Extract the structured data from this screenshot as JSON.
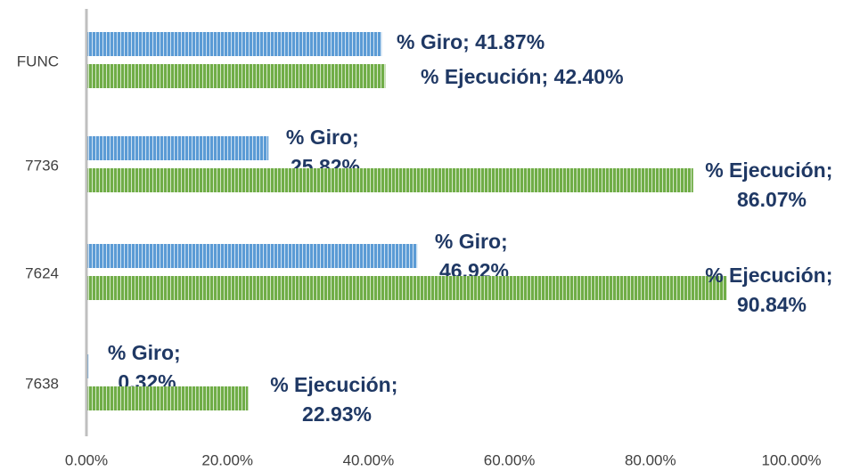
{
  "chart_data": {
    "type": "barh",
    "categories": [
      "FUNC",
      "7736",
      "7624",
      "7638"
    ],
    "series": [
      {
        "name": "% Giro",
        "color": "#5b9bd5",
        "values": [
          41.87,
          25.82,
          46.92,
          0.32
        ],
        "value_labels": [
          "% Giro; 41.87%",
          "% Giro; 25.82%",
          "% Giro; 46.92%",
          "% Giro; 0.32%"
        ]
      },
      {
        "name": "% Ejecución",
        "color": "#70ad47",
        "values": [
          42.4,
          86.07,
          90.84,
          22.93
        ],
        "value_labels": [
          "% Ejecución; 42.40%",
          "% Ejecución; 86.07%",
          "% Ejecución; 90.84%",
          "% Ejecución; 22.93%"
        ]
      }
    ],
    "xlim": [
      0,
      100
    ],
    "xticks": [
      {
        "value": 0,
        "label": "0.00%"
      },
      {
        "value": 20,
        "label": "20.00%"
      },
      {
        "value": 40,
        "label": "40.00%"
      },
      {
        "value": 60,
        "label": "60.00%"
      },
      {
        "value": 80,
        "label": "80.00%"
      },
      {
        "value": 100,
        "label": "100.00%"
      }
    ]
  }
}
